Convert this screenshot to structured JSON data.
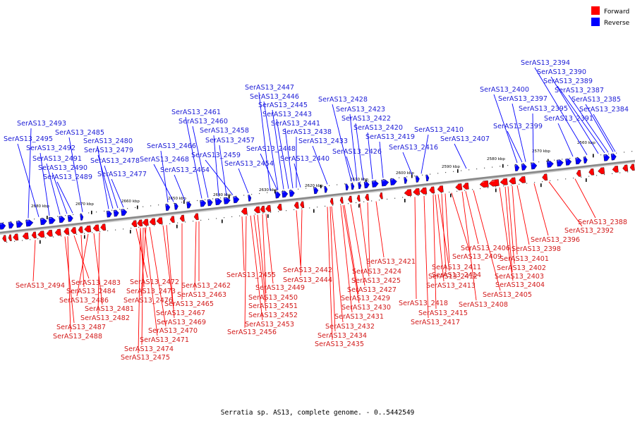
{
  "legend": {
    "items": [
      {
        "label": "Forward",
        "color": "#ff0000"
      },
      {
        "label": "Reverse",
        "color": "#0000ff"
      }
    ]
  },
  "caption": "Serratia sp. AS13, complete genome. - 0..5442549",
  "colors": {
    "forward": "#ff0000",
    "reverse": "#0000ff",
    "backbone": "#888888"
  },
  "chart_data": {
    "type": "genome-map",
    "scale_labels": [
      "2680 kbp",
      "2670 kbp",
      "2660 kbp",
      "2650 kbp",
      "2640 kbp",
      "2630 kbp",
      "2620 kbp",
      "2610 kbp",
      "2600 kbp",
      "2590 kbp",
      "2580 kbp",
      "2570 kbp",
      "2560 kbp"
    ],
    "reverse_genes": [
      "SerAS13_2493",
      "SerAS13_2495",
      "SerAS13_2492",
      "SerAS13_2491",
      "SerAS13_2490",
      "SerAS13_2489",
      "SerAS13_2485",
      "SerAS13_2480",
      "SerAS13_2479",
      "SerAS13_2478",
      "SerAS13_2477",
      "SerAS13_2466",
      "SerAS13_2468",
      "SerAS13_2464",
      "SerAS13_2461",
      "SerAS13_2460",
      "SerAS13_2458",
      "SerAS13_2457",
      "SerAS13_2459",
      "SerAS13_2454",
      "SerAS13_2447",
      "SerAS13_2446",
      "SerAS13_2445",
      "SerAS13_2443",
      "SerAS13_2441",
      "SerAS13_2438",
      "SerAS13_2448",
      "SerAS13_2433",
      "SerAS13_2440",
      "SerAS13_2428",
      "SerAS13_2423",
      "SerAS13_2422",
      "SerAS13_2420",
      "SerAS13_2419",
      "SerAS13_2426",
      "SerAS13_2416",
      "SerAS13_2410",
      "SerAS13_2407",
      "SerAS13_2400",
      "SerAS13_2397",
      "SerAS13_2395",
      "SerAS13_2399",
      "SerAS13_2394",
      "SerAS13_2390",
      "SerAS13_2389",
      "SerAS13_2387",
      "SerAS13_2385",
      "SerAS13_2391",
      "SerAS13_2384"
    ],
    "forward_genes": [
      "SerAS13_2494",
      "SerAS13_2483",
      "SerAS13_2484",
      "SerAS13_2486",
      "SerAS13_2481",
      "SerAS13_2482",
      "SerAS13_2487",
      "SerAS13_2488",
      "SerAS13_2472",
      "SerAS13_2473",
      "SerAS13_2476",
      "SerAS13_2469",
      "SerAS13_2467",
      "SerAS13_2470",
      "SerAS13_2471",
      "SerAS13_2474",
      "SerAS13_2475",
      "SerAS13_2462",
      "SerAS13_2463",
      "SerAS13_2465",
      "SerAS13_2455",
      "SerAS13_2449",
      "SerAS13_2450",
      "SerAS13_2451",
      "SerAS13_2452",
      "SerAS13_2453",
      "SerAS13_2456",
      "SerAS13_2442",
      "SerAS13_2444",
      "SerAS13_2421",
      "SerAS13_2424",
      "SerAS13_2425",
      "SerAS13_2427",
      "SerAS13_2429",
      "SerAS13_2430",
      "SerAS13_2431",
      "SerAS13_2432",
      "SerAS13_2434",
      "SerAS13_2435",
      "SerAS13_2418",
      "SerAS13_2415",
      "SerAS13_2417",
      "SerAS13_2414",
      "SerAS13_2413",
      "SerAS13_2412",
      "SerAS13_2411",
      "SerAS13_2409",
      "SerAS13_2406",
      "SerAS13_2408",
      "SerAS13_2405",
      "SerAS13_2404",
      "SerAS13_2403",
      "SerAS13_2402",
      "SerAS13_2401",
      "SerAS13_2398",
      "SerAS13_2396",
      "SerAS13_2392",
      "SerAS13_2388"
    ]
  }
}
